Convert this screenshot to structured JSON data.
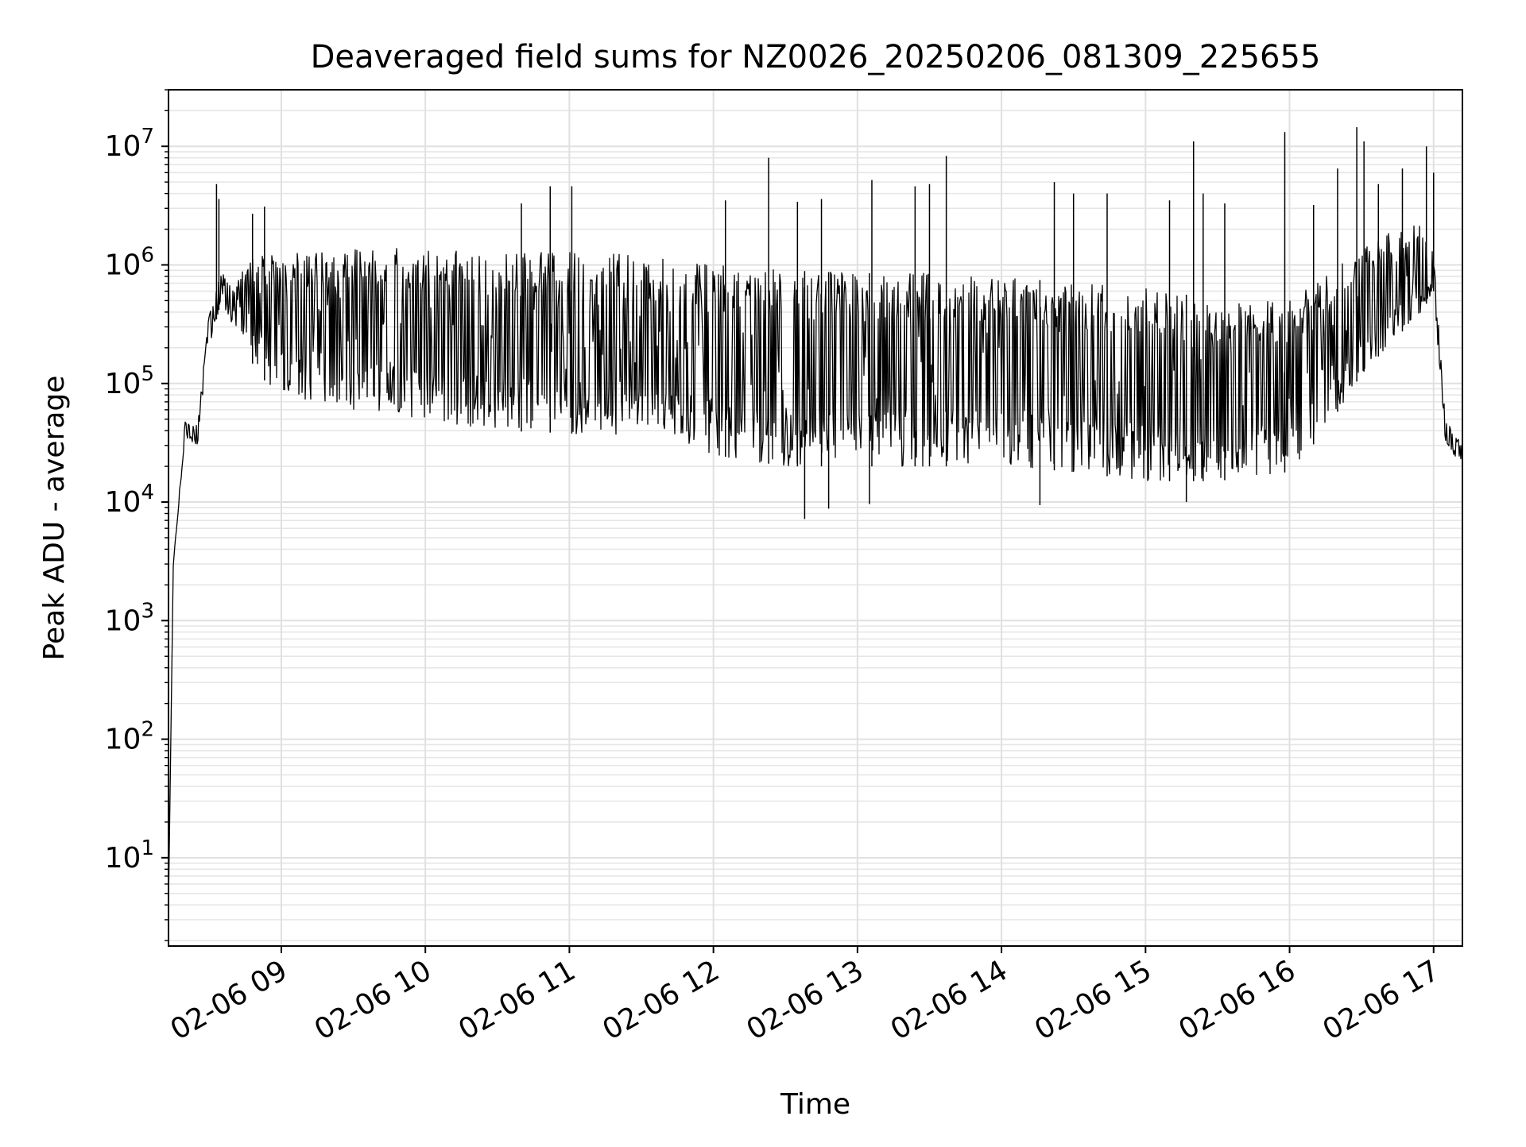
{
  "chart_data": {
    "type": "line",
    "title": "Deaveraged field sums for NZ0026_20250206_081309_225655",
    "xlabel": "Time",
    "ylabel": "Peak ADU - average",
    "y_scale": "log",
    "ylim": [
      1.8,
      30000000
    ],
    "xlim": [
      "2025-02-06 08:13",
      "2025-02-06 17:12"
    ],
    "grid": true,
    "x_ticks": [
      "2025-02-06 09:00",
      "2025-02-06 10:00",
      "2025-02-06 11:00",
      "2025-02-06 12:00",
      "2025-02-06 13:00",
      "2025-02-06 14:00",
      "2025-02-06 15:00",
      "2025-02-06 16:00",
      "2025-02-06 17:00"
    ],
    "x_tick_labels": [
      "02-06 09",
      "02-06 10",
      "02-06 11",
      "02-06 12",
      "02-06 13",
      "02-06 14",
      "02-06 15",
      "02-06 16",
      "02-06 17"
    ],
    "y_ticks": [
      10,
      100,
      1000,
      10000,
      100000,
      1000000,
      10000000
    ],
    "y_tick_labels": [
      {
        "base": "10",
        "exp": "1"
      },
      {
        "base": "10",
        "exp": "2"
      },
      {
        "base": "10",
        "exp": "3"
      },
      {
        "base": "10",
        "exp": "4"
      },
      {
        "base": "10",
        "exp": "5"
      },
      {
        "base": "10",
        "exp": "6"
      },
      {
        "base": "10",
        "exp": "7"
      }
    ],
    "series": [
      {
        "color": "#000000",
        "envelope": {
          "x": [
            "2025-02-06 08:13",
            "2025-02-06 08:15",
            "2025-02-06 08:20",
            "2025-02-06 08:25",
            "2025-02-06 08:30",
            "2025-02-06 08:35",
            "2025-02-06 08:40",
            "2025-02-06 08:45",
            "2025-02-06 08:50",
            "2025-02-06 09:00",
            "2025-02-06 09:30",
            "2025-02-06 10:00",
            "2025-02-06 10:30",
            "2025-02-06 11:00",
            "2025-02-06 11:30",
            "2025-02-06 12:00",
            "2025-02-06 12:30",
            "2025-02-06 13:00",
            "2025-02-06 13:30",
            "2025-02-06 14:00",
            "2025-02-06 14:30",
            "2025-02-06 15:00",
            "2025-02-06 15:30",
            "2025-02-06 16:00",
            "2025-02-06 16:15",
            "2025-02-06 16:30",
            "2025-02-06 16:45",
            "2025-02-06 16:55",
            "2025-02-06 17:00",
            "2025-02-06 17:05",
            "2025-02-06 17:12"
          ],
          "upper": [
            4,
            3000,
            50000,
            45000,
            400000,
            900000,
            700000,
            1000000,
            1200000,
            1300000,
            1400000,
            1400000,
            1300000,
            1300000,
            1200000,
            1000000,
            900000,
            850000,
            850000,
            800000,
            700000,
            650000,
            500000,
            500000,
            800000,
            1500000,
            2000000,
            2500000,
            1200000,
            50000,
            30000
          ],
          "lower": [
            4,
            3000,
            35000,
            30000,
            200000,
            500000,
            300000,
            200000,
            120000,
            80000,
            60000,
            50000,
            40000,
            38000,
            33000,
            25000,
            20000,
            20000,
            20000,
            20000,
            18000,
            15000,
            15000,
            18000,
            40000,
            120000,
            250000,
            400000,
            600000,
            30000,
            20000
          ]
        },
        "spikes": [
          {
            "x": "2025-02-06 08:33",
            "y": 4800000
          },
          {
            "x": "2025-02-06 08:34",
            "y": 3600000
          },
          {
            "x": "2025-02-06 08:48",
            "y": 2700000
          },
          {
            "x": "2025-02-06 08:53",
            "y": 3100000
          },
          {
            "x": "2025-02-06 10:40",
            "y": 3300000
          },
          {
            "x": "2025-02-06 10:52",
            "y": 4600000
          },
          {
            "x": "2025-02-06 11:01",
            "y": 4600000
          },
          {
            "x": "2025-02-06 12:05",
            "y": 3500000
          },
          {
            "x": "2025-02-06 12:23",
            "y": 8000000
          },
          {
            "x": "2025-02-06 12:35",
            "y": 3400000
          },
          {
            "x": "2025-02-06 12:45",
            "y": 3600000
          },
          {
            "x": "2025-02-06 13:06",
            "y": 5200000
          },
          {
            "x": "2025-02-06 13:24",
            "y": 4600000
          },
          {
            "x": "2025-02-06 13:30",
            "y": 4800000
          },
          {
            "x": "2025-02-06 13:37",
            "y": 8300000
          },
          {
            "x": "2025-02-06 14:22",
            "y": 5000000
          },
          {
            "x": "2025-02-06 14:30",
            "y": 4000000
          },
          {
            "x": "2025-02-06 14:44",
            "y": 4000000
          },
          {
            "x": "2025-02-06 15:10",
            "y": 3500000
          },
          {
            "x": "2025-02-06 15:20",
            "y": 11000000
          },
          {
            "x": "2025-02-06 15:24",
            "y": 4000000
          },
          {
            "x": "2025-02-06 15:33",
            "y": 3300000
          },
          {
            "x": "2025-02-06 15:58",
            "y": 13200000
          },
          {
            "x": "2025-02-06 16:10",
            "y": 3200000
          },
          {
            "x": "2025-02-06 16:20",
            "y": 6500000
          },
          {
            "x": "2025-02-06 16:28",
            "y": 14500000
          },
          {
            "x": "2025-02-06 16:31",
            "y": 11000000
          },
          {
            "x": "2025-02-06 16:37",
            "y": 4800000
          },
          {
            "x": "2025-02-06 16:47",
            "y": 6500000
          },
          {
            "x": "2025-02-06 16:57",
            "y": 10000000
          },
          {
            "x": "2025-02-06 17:00",
            "y": 6000000
          }
        ],
        "dips": [
          {
            "x": "2025-02-06 12:38",
            "y": 7200
          },
          {
            "x": "2025-02-06 12:48",
            "y": 8800
          },
          {
            "x": "2025-02-06 13:05",
            "y": 9600
          },
          {
            "x": "2025-02-06 14:16",
            "y": 9400
          },
          {
            "x": "2025-02-06 15:17",
            "y": 10000
          }
        ]
      }
    ]
  }
}
